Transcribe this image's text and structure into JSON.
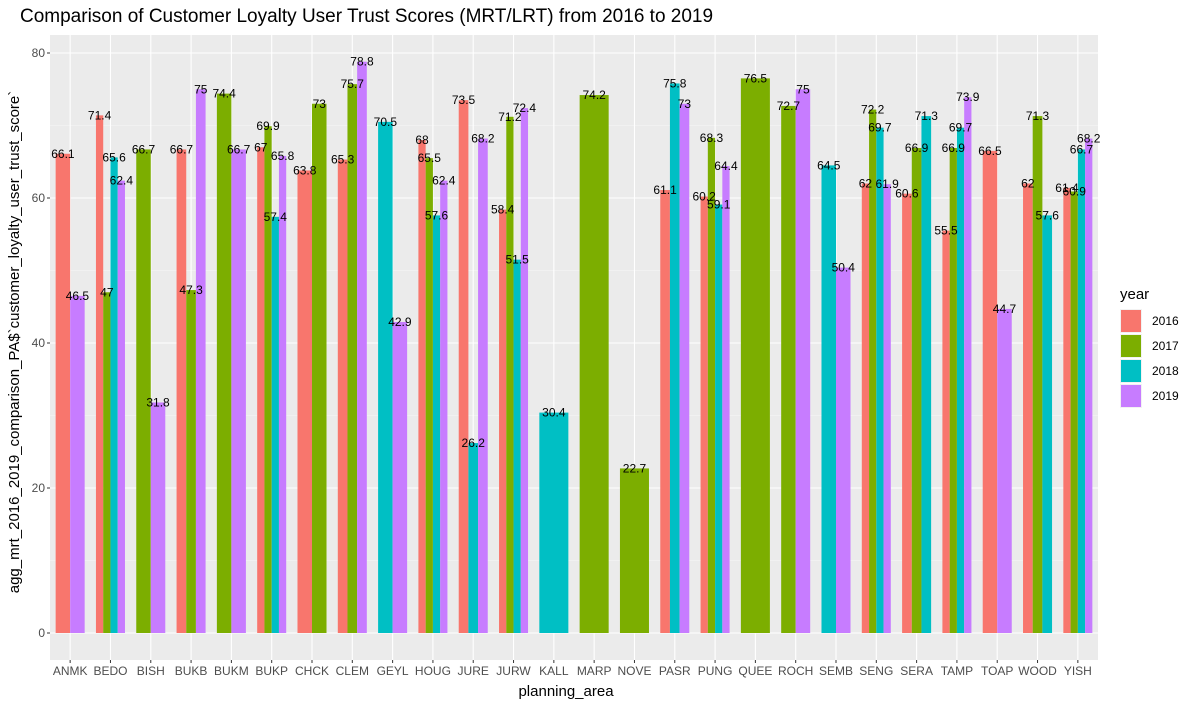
{
  "chart_data": {
    "type": "bar",
    "title": "Comparison of Customer Loyalty User Trust Scores (MRT/LRT) from 2016 to 2019",
    "xlabel": "planning_area",
    "ylabel": "agg_mrt_2016_2019_comparison_PA$`customer_loyalty_user_trust_score`",
    "ylim": [
      0,
      82
    ],
    "yticks": [
      "0",
      "20",
      "40",
      "60",
      "80"
    ],
    "ytick_values": [
      0,
      20,
      40,
      60,
      80
    ],
    "grid": true,
    "legend_position": "right",
    "legend_title": "year",
    "categories": [
      "ANMK",
      "BEDO",
      "BISH",
      "BUKB",
      "BUKM",
      "BUKP",
      "CHCK",
      "CLEM",
      "GEYL",
      "HOUG",
      "JURE",
      "JURW",
      "KALL",
      "MARP",
      "NOVE",
      "PASR",
      "PUNG",
      "QUEE",
      "ROCH",
      "SEMB",
      "SENG",
      "SERA",
      "TAMP",
      "TOAP",
      "WOOD",
      "YISH"
    ],
    "series": [
      {
        "name": "2016",
        "color": "#F8766D",
        "values": [
          66.1,
          71.4,
          null,
          66.7,
          null,
          67.0,
          63.8,
          65.3,
          null,
          68.0,
          73.5,
          58.4,
          null,
          null,
          null,
          61.1,
          60.2,
          null,
          null,
          null,
          62.0,
          60.6,
          55.5,
          66.5,
          62.0,
          61.4
        ]
      },
      {
        "name": "2017",
        "color": "#7CAE00",
        "values": [
          null,
          47.0,
          66.7,
          47.3,
          74.4,
          69.9,
          73.0,
          75.7,
          null,
          65.5,
          null,
          71.2,
          null,
          74.2,
          22.7,
          null,
          68.3,
          76.5,
          72.7,
          null,
          72.2,
          66.9,
          66.9,
          null,
          71.3,
          60.9
        ]
      },
      {
        "name": "2018",
        "color": "#00BFC4",
        "values": [
          null,
          65.6,
          null,
          null,
          null,
          57.4,
          null,
          null,
          70.5,
          57.6,
          26.2,
          51.5,
          30.4,
          null,
          null,
          75.8,
          59.1,
          null,
          null,
          64.5,
          69.7,
          71.3,
          69.7,
          null,
          57.6,
          66.7
        ]
      },
      {
        "name": "2019",
        "color": "#C77CFF",
        "values": [
          46.5,
          62.4,
          31.8,
          75.0,
          66.7,
          65.8,
          null,
          78.8,
          42.9,
          62.4,
          68.2,
          72.4,
          null,
          null,
          null,
          73.0,
          64.4,
          null,
          75.0,
          50.4,
          61.9,
          null,
          73.9,
          44.7,
          null,
          68.2
        ]
      }
    ]
  }
}
